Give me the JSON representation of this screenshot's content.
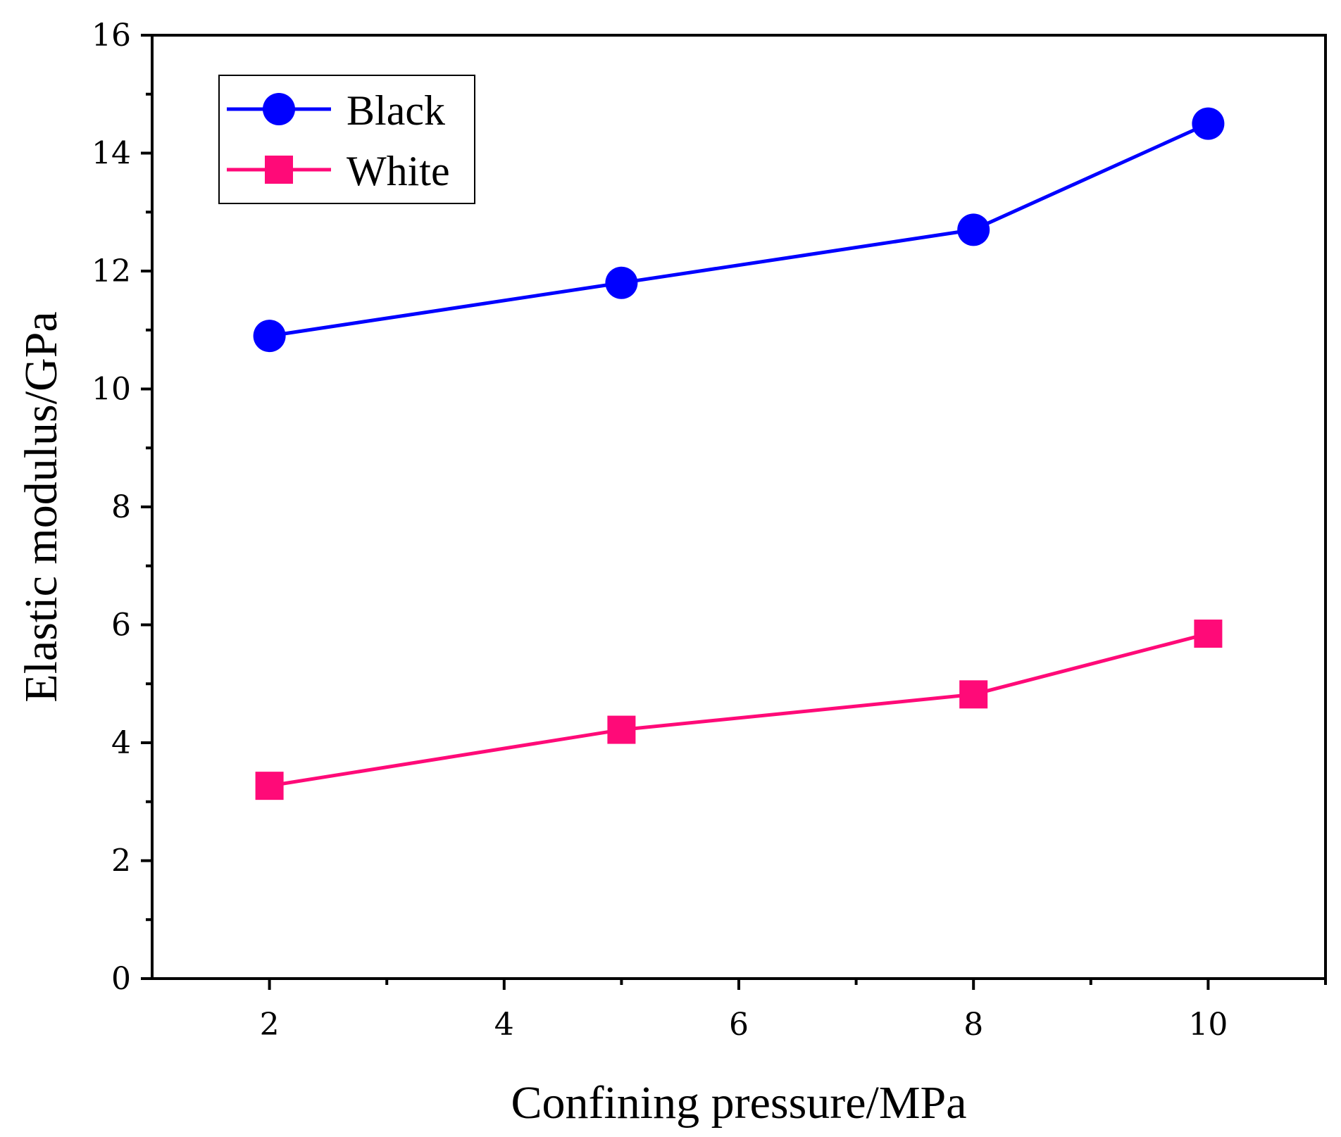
{
  "chart_data": {
    "type": "line",
    "xlabel": "Confining pressure/MPa",
    "ylabel": "Elastic modulus/GPa",
    "xlim": [
      1,
      11
    ],
    "ylim": [
      0,
      16
    ],
    "xticks": [
      2,
      4,
      6,
      8,
      10
    ],
    "xticks_minor": [
      3,
      5,
      7,
      9,
      11
    ],
    "yticks": [
      0,
      2,
      4,
      6,
      8,
      10,
      12,
      14,
      16
    ],
    "yticks_minor": [
      1,
      3,
      5,
      7,
      9,
      11,
      13,
      15
    ],
    "grid": false,
    "legend_position": "top-left",
    "series": [
      {
        "name": "Black",
        "color": "#0000ff",
        "marker": "circle",
        "x": [
          2,
          5,
          8,
          10
        ],
        "y": [
          10.9,
          11.8,
          12.7,
          14.5
        ]
      },
      {
        "name": "White",
        "color": "#ff0a78",
        "marker": "square",
        "x": [
          2,
          5,
          8,
          10
        ],
        "y": [
          3.27,
          4.22,
          4.82,
          5.85
        ]
      }
    ]
  }
}
